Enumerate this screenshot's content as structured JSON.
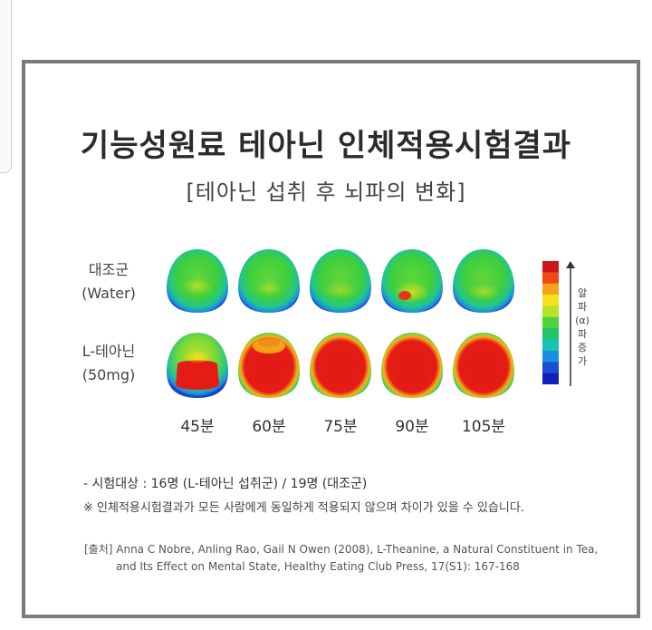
{
  "title": "기능성원료 테아닌 인체적용시험결과",
  "subtitle": "[테아닌 섭취 후 뇌파의 변화]",
  "groups": [
    {
      "name": "대조군",
      "detail": "(Water)"
    },
    {
      "name": "L-테아닌",
      "detail": "(50mg)"
    }
  ],
  "times": [
    "45분",
    "60분",
    "75분",
    "90분",
    "105분"
  ],
  "scale": {
    "label_chars": [
      "알",
      "파",
      "(α)",
      "파",
      "증",
      "가"
    ],
    "colors": [
      "#d0141a",
      "#f04a1a",
      "#f7a21b",
      "#f4e21e",
      "#b6e22a",
      "#4cd33a",
      "#22c46a",
      "#18c2b4",
      "#1a8fe0",
      "#1a4fd6",
      "#1020b8"
    ]
  },
  "notes": {
    "subjects": "- 시험대상 : 16명 (L-테아닌 섭취군) / 19명 (대조군)",
    "disclaimer": "※ 인체적용시험결과가 모든 사람에게 동일하게 적용되지 않으며 차이가 있을 수 있습니다."
  },
  "reference": {
    "line1": "[출처] Anna C Nobre, Anling Rao, Gail N Owen (2008), L-Theanine, a Natural Constituent in Tea,",
    "line2": "and Its Effect on Mental State, Healthy Eating Club Press, 17(S1): 167-168"
  }
}
